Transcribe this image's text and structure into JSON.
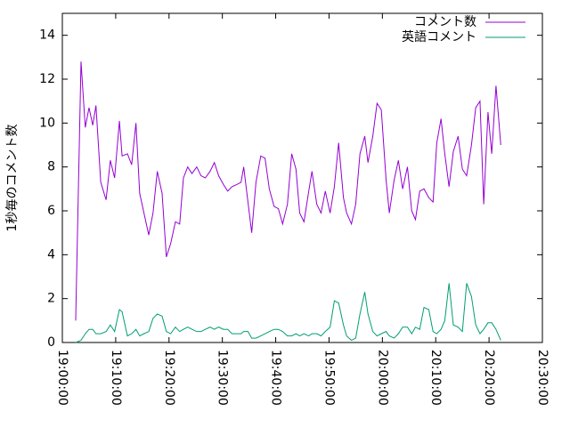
{
  "chart_data": {
    "type": "line",
    "xlabel": null,
    "ylabel": "1秒毎のコメント数",
    "x": [
      2.5,
      3.5,
      4.3,
      5.0,
      5.7,
      6.3,
      7.2,
      8.2,
      9.0,
      9.8,
      10.7,
      11.2,
      12.2,
      13.0,
      13.8,
      14.5,
      15.3,
      16.2,
      17.0,
      17.8,
      18.7,
      19.5,
      20.3,
      21.2,
      22.0,
      22.7,
      23.5,
      24.3,
      25.2,
      26.0,
      26.8,
      27.7,
      28.5,
      29.3,
      30.2,
      31.0,
      31.8,
      32.7,
      33.5,
      34.0,
      34.8,
      35.5,
      36.3,
      37.2,
      38.0,
      38.8,
      39.7,
      40.5,
      41.3,
      42.2,
      43.0,
      43.8,
      44.5,
      45.3,
      46.2,
      46.8,
      47.7,
      48.5,
      49.3,
      50.2,
      51.0,
      51.8,
      52.7,
      53.3,
      54.2,
      55.0,
      55.8,
      56.7,
      57.3,
      58.2,
      59.0,
      59.8,
      60.7,
      61.3,
      62.2,
      63.0,
      63.8,
      64.7,
      65.5,
      66.2,
      67.0,
      67.8,
      68.7,
      69.5,
      70.2,
      71.0,
      71.7,
      72.5,
      73.3,
      74.2,
      75.0,
      75.8,
      76.7,
      77.5,
      78.3,
      79.0,
      79.8,
      80.5,
      81.3,
      82.2
    ],
    "series": [
      {
        "name": "コメント数",
        "color": "#9400d3",
        "values": [
          1.0,
          12.8,
          9.8,
          10.7,
          9.9,
          10.8,
          7.3,
          6.5,
          8.3,
          7.5,
          10.1,
          8.5,
          8.6,
          8.1,
          10.0,
          6.8,
          5.9,
          4.9,
          5.9,
          7.8,
          6.8,
          3.9,
          4.5,
          5.5,
          5.4,
          7.5,
          8.0,
          7.7,
          8.0,
          7.6,
          7.5,
          7.8,
          8.2,
          7.6,
          7.2,
          6.9,
          7.1,
          7.2,
          7.3,
          8.0,
          6.4,
          5.0,
          7.3,
          8.5,
          8.4,
          7.0,
          6.2,
          6.1,
          5.4,
          6.3,
          8.6,
          7.9,
          5.9,
          5.5,
          6.9,
          7.8,
          6.3,
          5.9,
          6.9,
          5.9,
          7.1,
          9.1,
          6.6,
          5.9,
          5.4,
          6.3,
          8.6,
          9.4,
          8.2,
          9.4,
          10.9,
          10.6,
          7.4,
          5.9,
          7.4,
          8.3,
          7.0,
          8.0,
          6.0,
          5.6,
          6.9,
          7.0,
          6.6,
          6.4,
          9.1,
          10.2,
          8.6,
          7.1,
          8.7,
          9.4,
          7.9,
          7.6,
          9.0,
          10.7,
          11.0,
          6.3,
          10.5,
          8.6,
          11.7,
          9.0
        ]
      },
      {
        "name": "英語コメント",
        "color": "#009e73",
        "values": [
          0.0,
          0.1,
          0.4,
          0.6,
          0.6,
          0.4,
          0.4,
          0.5,
          0.8,
          0.5,
          1.5,
          1.4,
          0.3,
          0.4,
          0.6,
          0.3,
          0.4,
          0.5,
          1.1,
          1.3,
          1.2,
          0.5,
          0.4,
          0.7,
          0.5,
          0.6,
          0.7,
          0.6,
          0.5,
          0.5,
          0.6,
          0.7,
          0.6,
          0.7,
          0.6,
          0.6,
          0.4,
          0.4,
          0.4,
          0.5,
          0.5,
          0.2,
          0.2,
          0.3,
          0.4,
          0.5,
          0.6,
          0.6,
          0.5,
          0.3,
          0.3,
          0.4,
          0.3,
          0.4,
          0.3,
          0.4,
          0.4,
          0.3,
          0.5,
          0.7,
          1.9,
          1.8,
          0.8,
          0.3,
          0.1,
          0.2,
          1.3,
          2.3,
          1.3,
          0.5,
          0.3,
          0.4,
          0.5,
          0.3,
          0.2,
          0.4,
          0.7,
          0.7,
          0.4,
          0.7,
          0.6,
          1.6,
          1.5,
          0.5,
          0.4,
          0.6,
          1.0,
          2.7,
          0.8,
          0.7,
          0.5,
          2.7,
          2.1,
          0.8,
          0.4,
          0.6,
          0.9,
          0.9,
          0.6,
          0.1
        ]
      }
    ],
    "xlim": [
      0,
      90
    ],
    "xticks": [
      {
        "value": 0,
        "label": "19:00:00"
      },
      {
        "value": 10,
        "label": "19:10:00"
      },
      {
        "value": 20,
        "label": "19:20:00"
      },
      {
        "value": 30,
        "label": "19:30:00"
      },
      {
        "value": 40,
        "label": "19:40:00"
      },
      {
        "value": 50,
        "label": "19:50:00"
      },
      {
        "value": 60,
        "label": "20:00:00"
      },
      {
        "value": 70,
        "label": "20:10:00"
      },
      {
        "value": 80,
        "label": "20:20:00"
      },
      {
        "value": 90,
        "label": "20:30:00"
      }
    ],
    "ylim": [
      0,
      15
    ],
    "yticks": [
      0,
      2,
      4,
      6,
      8,
      10,
      12,
      14
    ],
    "legend": "top-right"
  }
}
